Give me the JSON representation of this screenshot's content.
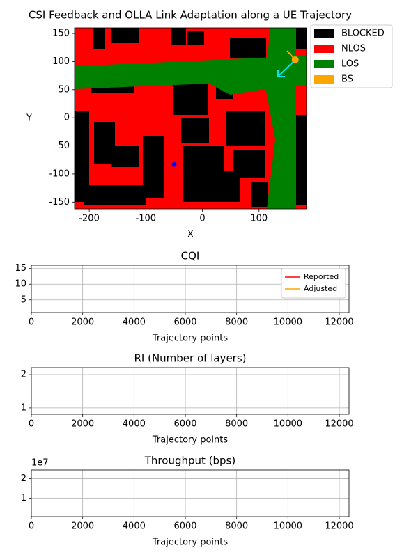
{
  "chart_data": [
    {
      "type": "map",
      "title": "CSI Feedback and OLLA Link Adaptation along a UE Trajectory",
      "xlabel": "X",
      "ylabel": "Y",
      "xlim": [
        -226,
        184
      ],
      "ylim": [
        -162,
        160
      ],
      "xticks": [
        -200,
        -100,
        0,
        100
      ],
      "yticks": [
        -150,
        -100,
        -50,
        0,
        50,
        100,
        150
      ],
      "series": [
        {
          "name": "BLOCKED",
          "color": "#000000"
        },
        {
          "name": "NLOS",
          "color": "#ff0000"
        },
        {
          "name": "LOS",
          "color": "#008000"
        },
        {
          "name": "BS",
          "color": "#ffa500",
          "x": [
            164
          ],
          "values": [
            103
          ]
        }
      ],
      "ue": {
        "color": "#0000ff",
        "x": [
          -50
        ],
        "values": [
          -83
        ]
      },
      "legend": "outside upper right"
    },
    {
      "type": "line",
      "title": "CQI",
      "xlabel": "Trajectory points",
      "x": [],
      "series": [
        {
          "name": "Reported",
          "color": "#ff0000",
          "values": []
        },
        {
          "name": "Adjusted",
          "color": "#ffa500",
          "values": []
        }
      ],
      "xlim": [
        0,
        12380
      ],
      "xticks": [
        0,
        2000,
        4000,
        6000,
        8000,
        10000,
        12000
      ],
      "ylim": [
        0.95,
        16.05
      ],
      "yticks": [
        5,
        10,
        15
      ],
      "grid": true,
      "legend": "upper right"
    },
    {
      "type": "line",
      "title": "RI (Number of layers)",
      "xlabel": "Trajectory points",
      "x": [],
      "series": [],
      "xlim": [
        0,
        12380
      ],
      "xticks": [
        0,
        2000,
        4000,
        6000,
        8000,
        10000,
        12000
      ],
      "ylim": [
        0.81,
        2.21
      ],
      "yticks": [
        1,
        2
      ],
      "grid": true
    },
    {
      "type": "line",
      "title": "Throughput (bps)",
      "xlabel": "Trajectory points",
      "x": [],
      "series": [],
      "xlim": [
        0,
        12380
      ],
      "xticks": [
        0,
        2000,
        4000,
        6000,
        8000,
        10000,
        12000
      ],
      "ylim": [
        500000,
        24500000
      ],
      "yticks": [
        {
          "value": 10000000,
          "label": "1"
        },
        {
          "value": 20000000,
          "label": "2"
        }
      ],
      "offset_label": "1e7",
      "grid": true
    }
  ]
}
